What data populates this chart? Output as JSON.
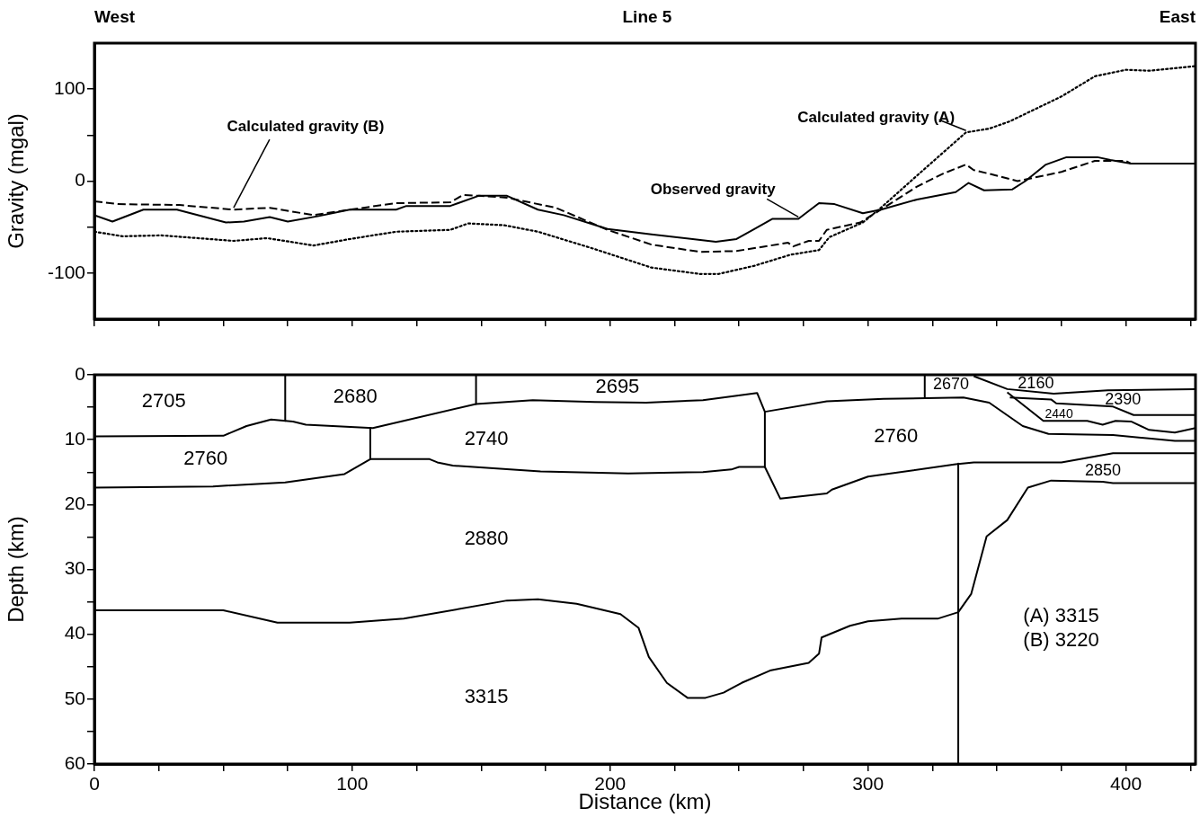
{
  "chart_data": [
    {
      "type": "line",
      "title": "Line 5",
      "ylabel": "Gravity (mgal)",
      "xlim": [
        0,
        427
      ],
      "ylim": [
        -150,
        150
      ],
      "xticks": [
        0,
        {
          "value": 25,
          "label": null
        },
        {
          "value": 50,
          "label": null
        },
        {
          "value": 75,
          "label": null
        },
        100,
        {
          "value": 125,
          "label": null
        },
        {
          "value": 150,
          "label": null
        },
        {
          "value": 175,
          "label": null
        },
        200,
        {
          "value": 225,
          "label": null
        },
        {
          "value": 250,
          "label": null
        },
        {
          "value": 275,
          "label": null
        },
        300,
        {
          "value": 325,
          "label": null
        },
        {
          "value": 350,
          "label": null
        },
        {
          "value": 375,
          "label": null
        },
        400,
        {
          "value": 425,
          "label": null
        }
      ],
      "yticks": [
        -100,
        {
          "value": -50,
          "label": null
        },
        0,
        {
          "value": 50,
          "label": null
        },
        100
      ],
      "tick_labels": "y",
      "annotations": [
        "West",
        "East"
      ],
      "series": [
        {
          "name": "Observed gravity",
          "color": "#000000",
          "line_style": "solid",
          "x": [
            0,
            7,
            19,
            32,
            51,
            58,
            68,
            75,
            87,
            99,
            117,
            121,
            138,
            149,
            160,
            172,
            182,
            199,
            216,
            241,
            249,
            263,
            273,
            281,
            287,
            298,
            305,
            319,
            334,
            339,
            345,
            356,
            361,
            369,
            377,
            389,
            394,
            402,
            427
          ],
          "values": [
            -37,
            -44,
            -31,
            -31,
            -45,
            -44,
            -39,
            -44,
            -38,
            -31,
            -31,
            -27,
            -27,
            -16,
            -16,
            -31,
            -37,
            -52,
            -58,
            -66,
            -63,
            -41,
            -41,
            -24,
            -25,
            -35,
            -31,
            -20,
            -12,
            -2,
            -10,
            -9,
            0,
            18,
            26,
            26,
            23,
            19,
            19
          ]
        },
        {
          "name": "Calculated gravity (B)",
          "color": "#000000",
          "line_style": "dashed",
          "x": [
            0,
            9,
            33,
            54,
            68,
            85,
            99,
            117,
            138,
            143,
            149,
            160,
            179,
            199,
            216,
            235,
            249,
            269,
            271,
            277,
            281,
            284,
            297,
            305,
            319,
            329,
            338,
            341,
            347,
            358,
            375,
            388,
            400,
            402,
            427
          ],
          "values": [
            -22,
            -25,
            -26,
            -31,
            -29,
            -37,
            -31,
            -24,
            -23,
            -15,
            -16,
            -18,
            -29,
            -53,
            -69,
            -77,
            -76,
            -67,
            -71,
            -65,
            -65,
            -53,
            -45,
            -31,
            -6,
            8,
            18,
            12,
            8,
            0,
            10,
            22,
            22,
            19,
            19
          ]
        },
        {
          "name": "Calculated gravity (A)",
          "color": "#000000",
          "line_style": "dotted",
          "x": [
            0,
            11,
            26,
            54,
            67,
            85,
            99,
            117,
            138,
            145,
            159,
            172,
            193,
            216,
            235,
            242,
            256,
            270,
            281,
            285,
            298,
            305,
            319,
            338,
            347,
            355,
            375,
            388,
            400,
            409,
            427
          ],
          "values": [
            -55,
            -60,
            -59,
            -65,
            -62,
            -70,
            -63,
            -55,
            -53,
            -46,
            -48,
            -55,
            -73,
            -94,
            -101,
            -101,
            -92,
            -80,
            -75,
            -61,
            -45,
            -29,
            6,
            53,
            57,
            65,
            92,
            114,
            121,
            120,
            125
          ]
        }
      ]
    },
    {
      "type": "line",
      "xlabel": "Distance (km)",
      "ylabel": "Depth (km)",
      "xlim": [
        0,
        427
      ],
      "ylim": [
        60,
        0
      ],
      "xticks": [
        0,
        {
          "value": 25,
          "label": null
        },
        {
          "value": 50,
          "label": null
        },
        {
          "value": 75,
          "label": null
        },
        100,
        {
          "value": 125,
          "label": null
        },
        {
          "value": 150,
          "label": null
        },
        {
          "value": 175,
          "label": null
        },
        200,
        {
          "value": 225,
          "label": null
        },
        {
          "value": 250,
          "label": null
        },
        {
          "value": 275,
          "label": null
        },
        300,
        {
          "value": 325,
          "label": null
        },
        {
          "value": 350,
          "label": null
        },
        {
          "value": 375,
          "label": null
        },
        400,
        {
          "value": 425,
          "label": null
        }
      ],
      "yticks": [
        0,
        {
          "value": 5,
          "label": null
        },
        10,
        {
          "value": 15,
          "label": null
        },
        20,
        {
          "value": 25,
          "label": null
        },
        30,
        {
          "value": 35,
          "label": null
        },
        40,
        {
          "value": 45,
          "label": null
        },
        50,
        {
          "value": 55,
          "label": null
        },
        60
      ],
      "annotations": [
        "2705",
        "2680",
        "2695",
        "2760",
        "2740",
        "2880",
        "3315",
        "2760",
        "2670",
        "2160",
        "2390",
        "2440",
        "2850",
        "(A) 3315",
        "(B) 3220"
      ],
      "series": [
        {
          "color": "#000000",
          "x": [
            0,
            50,
            59,
            68.5,
            77,
            82,
            108,
            148,
            170,
            194,
            214,
            236,
            257,
            260,
            284,
            306,
            337,
            347,
            360,
            370,
            395,
            419,
            427
          ],
          "values": [
            9.5,
            9.4,
            7.9,
            6.9,
            7.2,
            7.7,
            8.2,
            4.5,
            3.9,
            4.2,
            4.3,
            3.9,
            2.8,
            5.7,
            4.1,
            3.7,
            3.5,
            4.3,
            7.9,
            9.1,
            9.3,
            10.2,
            10.2
          ]
        },
        {
          "color": "#000000",
          "x": [
            0,
            46,
            74,
            97,
            107,
            130,
            133,
            139,
            173,
            207,
            236,
            247,
            250,
            260,
            266,
            284,
            286,
            300,
            334,
            341,
            375,
            395,
            427
          ],
          "values": [
            17.4,
            17.2,
            16.6,
            15.3,
            13,
            13,
            13.5,
            14,
            14.9,
            15.2,
            15,
            14.6,
            14.2,
            14.2,
            19.1,
            18.3,
            17.7,
            15.7,
            13.8,
            13.5,
            13.5,
            12.1,
            12.1
          ]
        },
        {
          "color": "#000000",
          "x": [
            0,
            50,
            71,
            99,
            120,
            160,
            172,
            187,
            204,
            211,
            215,
            222,
            230,
            237,
            244,
            251,
            262,
            277,
            281,
            282,
            293,
            300,
            313,
            327,
            335
          ],
          "values": [
            36.3,
            36.3,
            38.2,
            38.2,
            37.6,
            34.8,
            34.6,
            35.3,
            36.9,
            39,
            43.5,
            47.5,
            49.8,
            49.8,
            49,
            47.5,
            45.6,
            44.4,
            43,
            40.5,
            38.7,
            38,
            37.6,
            37.6,
            36.6
          ]
        },
        {
          "color": "#000000",
          "x": [
            335,
            340,
            346,
            354,
            362,
            371,
            391,
            395,
            427
          ],
          "values": [
            36.6,
            33.8,
            24.9,
            22.4,
            17.4,
            16.3,
            16.5,
            16.7,
            16.7
          ]
        },
        {
          "color": "#000000",
          "x": [
            341,
            354,
            372,
            393,
            427
          ],
          "values": [
            0.2,
            2.2,
            2.9,
            2.4,
            2.2
          ]
        },
        {
          "color": "#000000",
          "x": [
            355,
            371,
            373,
            395,
            403,
            427
          ],
          "values": [
            3.5,
            3.8,
            4.4,
            4.9,
            6.2,
            6.2
          ]
        },
        {
          "color": "#000000",
          "x": [
            354,
            368,
            385,
            391,
            396,
            402,
            409,
            419,
            427
          ],
          "values": [
            2.7,
            7.1,
            7.1,
            7.7,
            7.1,
            7.2,
            8.5,
            8.9,
            8.2
          ]
        },
        {
          "color": "#000000",
          "x": [
            74,
            74
          ],
          "values": [
            0,
            7.1
          ]
        },
        {
          "color": "#000000",
          "x": [
            107,
            107
          ],
          "values": [
            8.2,
            13
          ]
        },
        {
          "color": "#000000",
          "x": [
            148,
            148
          ],
          "values": [
            0,
            4.5
          ]
        },
        {
          "color": "#000000",
          "x": [
            260,
            260
          ],
          "values": [
            5.7,
            14.2
          ]
        },
        {
          "color": "#000000",
          "x": [
            322,
            322
          ],
          "values": [
            0,
            3.6
          ]
        },
        {
          "color": "#000000",
          "x": [
            335,
            335
          ],
          "values": [
            13.7,
            60
          ]
        }
      ]
    }
  ]
}
